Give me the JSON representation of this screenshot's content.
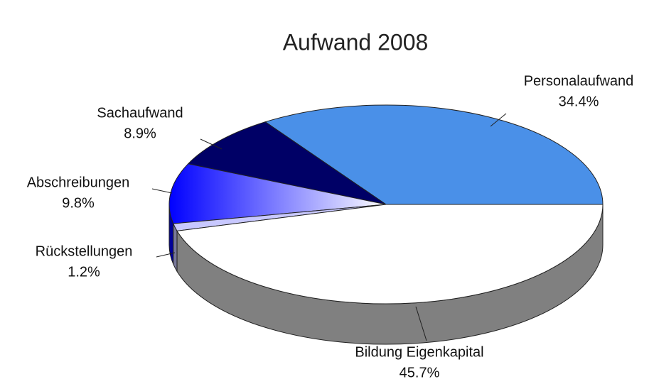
{
  "chart_data": {
    "type": "pie",
    "title": "Aufwand 2008",
    "categories": [
      "Personalaufwand",
      "Sachaufwand",
      "Abschreibungen",
      "Rückstellungen",
      "Bildung Eigenkapital"
    ],
    "values": [
      34.4,
      8.9,
      9.8,
      1.2,
      45.7
    ],
    "value_labels": [
      "34.4%",
      "8.9%",
      "9.8%",
      "1.2%",
      "45.7%"
    ],
    "colors": [
      "#4a90e8",
      "#000066",
      "#0000ff",
      "#c8c8ff",
      "#ffffff"
    ]
  }
}
